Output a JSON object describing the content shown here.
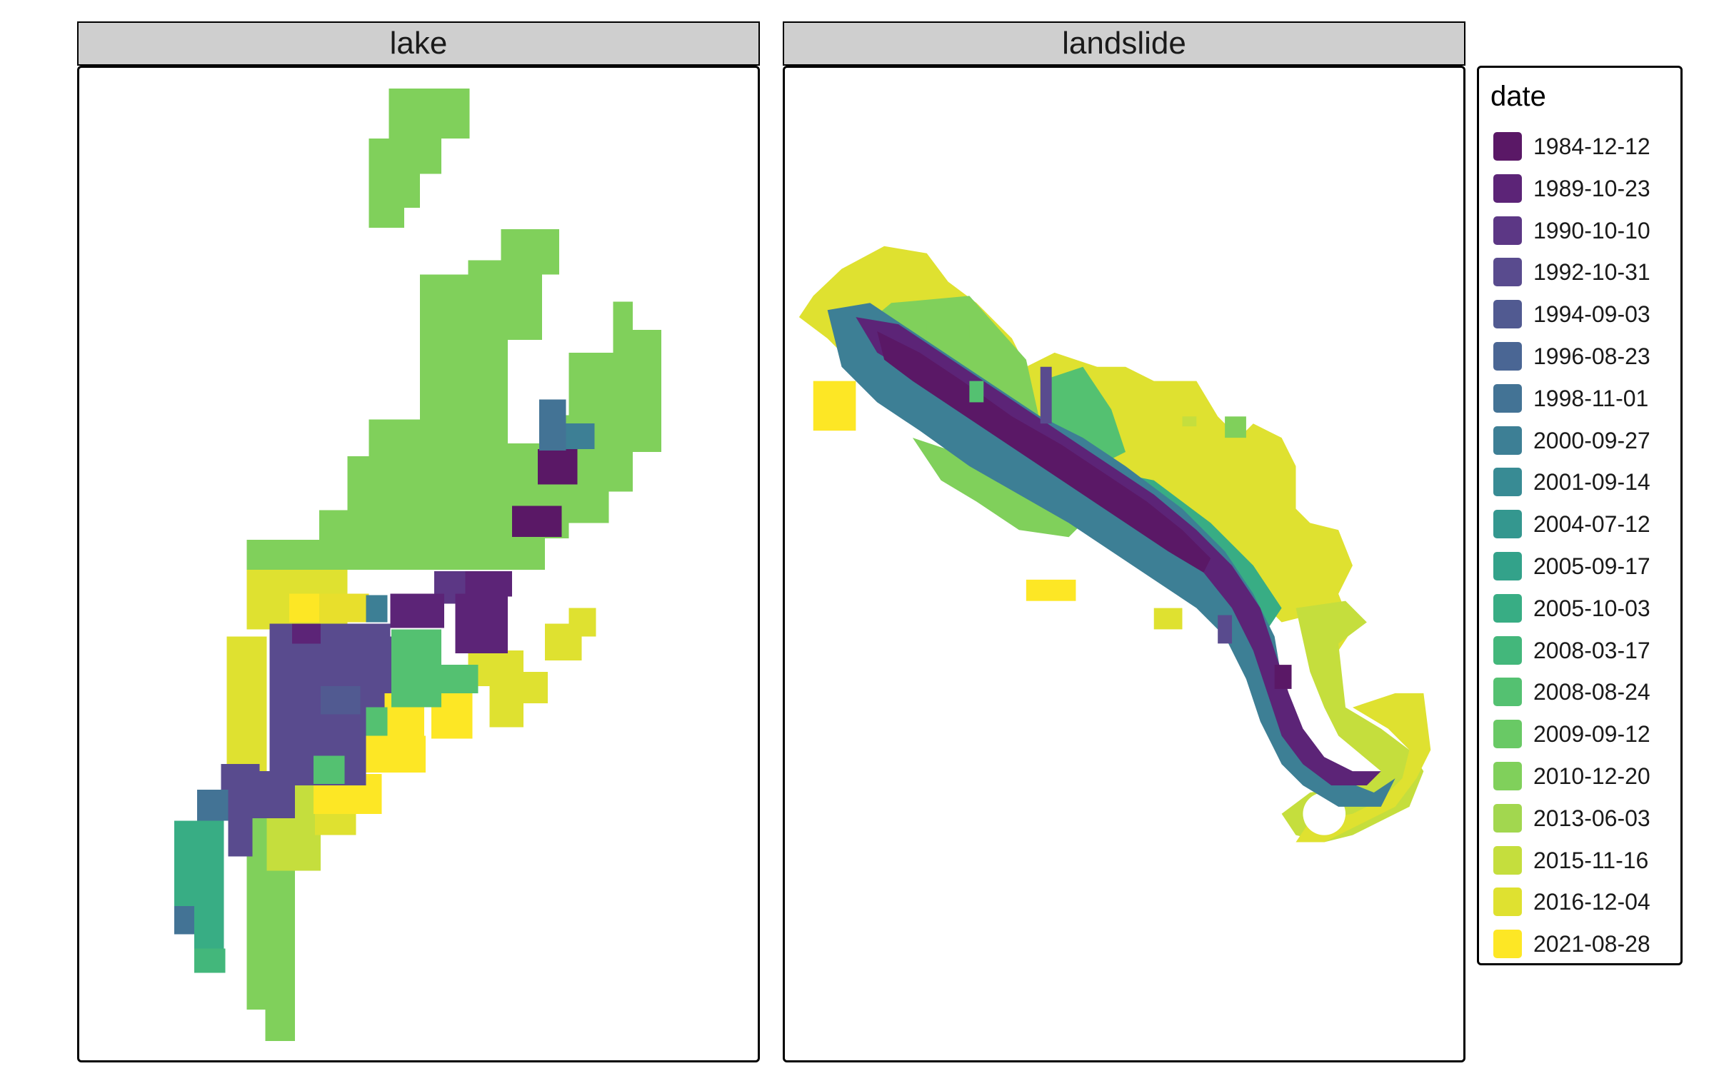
{
  "panels": [
    {
      "title": "lake"
    },
    {
      "title": "landslide"
    }
  ],
  "legend": {
    "title": "date",
    "items": [
      {
        "label": "1984-12-12",
        "color": "#5a1866"
      },
      {
        "label": "1989-10-23",
        "color": "#5c2477"
      },
      {
        "label": "1990-10-10",
        "color": "#5c3785"
      },
      {
        "label": "1992-10-31",
        "color": "#594b8e"
      },
      {
        "label": "1994-09-03",
        "color": "#515a91"
      },
      {
        "label": "1996-08-23",
        "color": "#4a6694"
      },
      {
        "label": "1998-11-01",
        "color": "#437395"
      },
      {
        "label": "2000-09-27",
        "color": "#3d7f95"
      },
      {
        "label": "2001-09-14",
        "color": "#388b94"
      },
      {
        "label": "2004-07-12",
        "color": "#34978f"
      },
      {
        "label": "2005-09-17",
        "color": "#33a28a"
      },
      {
        "label": "2005-10-03",
        "color": "#38ad84"
      },
      {
        "label": "2008-03-17",
        "color": "#43b77b"
      },
      {
        "label": "2008-08-24",
        "color": "#54c171"
      },
      {
        "label": "2009-09-12",
        "color": "#69c965"
      },
      {
        "label": "2010-12-20",
        "color": "#80d05b"
      },
      {
        "label": "2013-06-03",
        "color": "#a2d74f"
      },
      {
        "label": "2015-11-16",
        "color": "#c5de3d"
      },
      {
        "label": "2016-12-04",
        "color": "#dfe130"
      },
      {
        "label": "2021-08-28",
        "color": "#fde725"
      }
    ]
  }
}
